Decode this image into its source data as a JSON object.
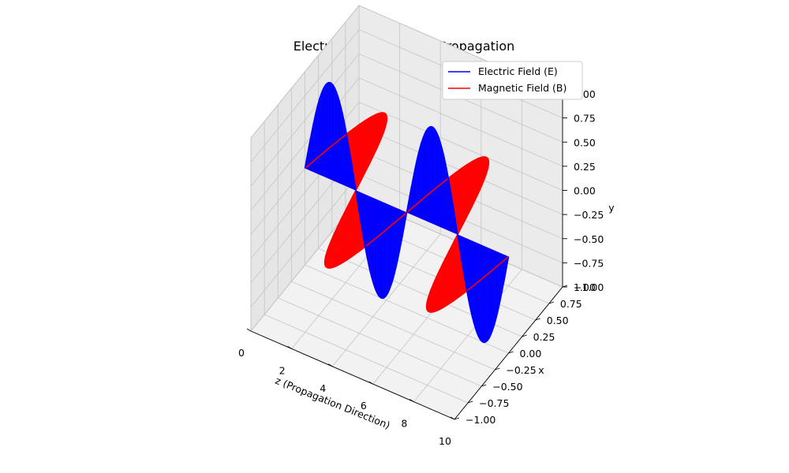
{
  "chart_data": {
    "type": "line",
    "title": "Electromagnetic Wave Propagation",
    "xlabel": "z (Propagation Direction)",
    "zlabel_y": "y",
    "depthlabel_x": "x",
    "axes": {
      "z_ticks": [
        0,
        2,
        4,
        6,
        8,
        10
      ],
      "x_ticks": [
        -1.0,
        -0.75,
        -0.5,
        -0.25,
        0.0,
        0.25,
        0.5,
        0.75,
        1.0
      ],
      "y_ticks": [
        -1.0,
        -0.75,
        -0.5,
        -0.25,
        0.0,
        0.25,
        0.5,
        0.75,
        1.0
      ],
      "z_range": [
        0,
        10
      ],
      "x_range": [
        -1,
        1
      ],
      "y_range": [
        -1,
        1
      ],
      "grid": true
    },
    "legend": {
      "placement": "top-right"
    },
    "wave": {
      "z_start": 0,
      "z_end": 10,
      "wavelength": 5,
      "amplitude": 1
    },
    "series": [
      {
        "name": "Electric Field (E)",
        "color": "#0000ff",
        "component": "y"
      },
      {
        "name": "Magnetic Field (B)",
        "color": "#ff0000",
        "component": "x"
      }
    ]
  }
}
